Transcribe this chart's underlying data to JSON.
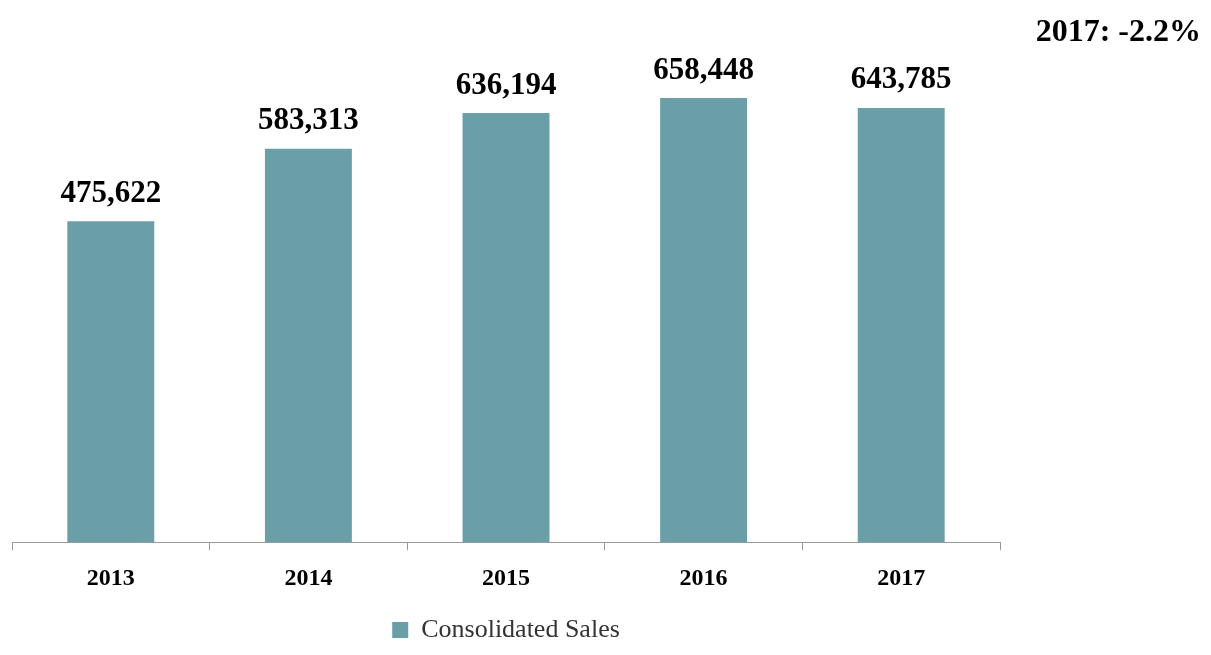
{
  "chart_data": {
    "type": "bar",
    "categories": [
      "2013",
      "2014",
      "2015",
      "2016",
      "2017"
    ],
    "series": [
      {
        "name": "Consolidated Sales",
        "color": "#6a9fa8",
        "values": [
          475622,
          583313,
          636194,
          658448,
          643785
        ],
        "value_labels": [
          "475,622",
          "583,313",
          "636,194",
          "658,448",
          "643,785"
        ]
      }
    ],
    "legend": "bottom",
    "grid": false,
    "annotations": [
      "2017: -2.2%"
    ]
  }
}
